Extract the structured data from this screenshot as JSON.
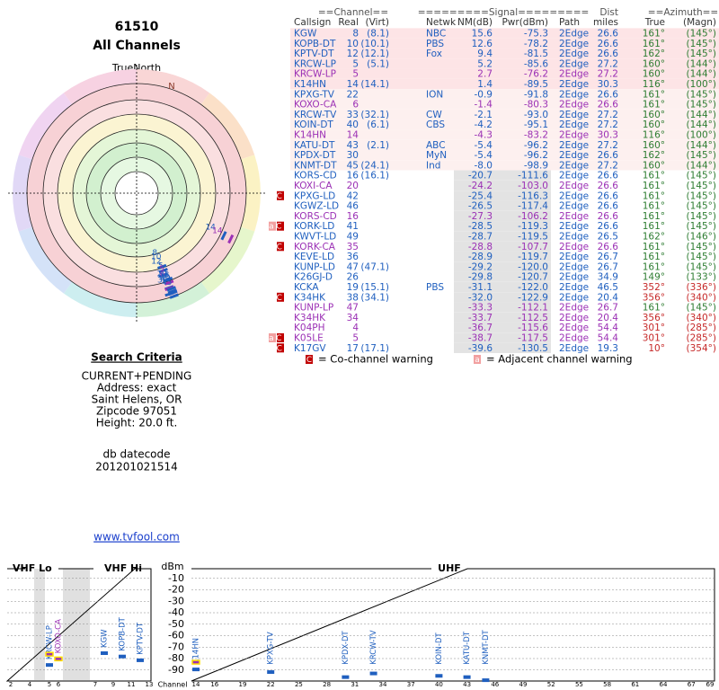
{
  "header": {
    "zip": "61510",
    "title": "All Channels"
  },
  "polar": {
    "north_label": "TrueNorth",
    "n": "N"
  },
  "criteria": {
    "heading": "Search Criteria",
    "lines": [
      "CURRENT+PENDING",
      "Address: exact",
      "Saint Helens, OR",
      "Zipcode 97051",
      "Height: 20.0 ft."
    ]
  },
  "datecode": {
    "label": "db datecode",
    "value": "201201021514"
  },
  "link": "www.tvfool.com",
  "table": {
    "group_headers": [
      "==Channel==",
      "=========Signal=========",
      "Dist",
      "==Azimuth=="
    ],
    "columns": [
      "Callsign",
      "Real",
      "(Virt)",
      "Netwk",
      "NM(dB)",
      "Pwr(dBm)",
      "Path",
      "miles",
      "True",
      "(Magn)"
    ],
    "rows": [
      {
        "callsign": "KGW",
        "real": "8",
        "virt": "(8.1)",
        "netwk": "NBC",
        "nm": "15.6",
        "pwr": "-75.3",
        "path": "2Edge",
        "dist": "26.6",
        "true": "161°",
        "magn": "(145°)",
        "color": "#1f5fbf",
        "az_color": "#2e7d32"
      },
      {
        "callsign": "KOPB-DT",
        "real": "10",
        "virt": "(10.1)",
        "netwk": "PBS",
        "nm": "12.6",
        "pwr": "-78.2",
        "path": "2Edge",
        "dist": "26.6",
        "true": "161°",
        "magn": "(145°)",
        "color": "#1f5fbf",
        "az_color": "#2e7d32"
      },
      {
        "callsign": "KPTV-DT",
        "real": "12",
        "virt": "(12.1)",
        "netwk": "Fox",
        "nm": "9.4",
        "pwr": "-81.5",
        "path": "2Edge",
        "dist": "26.6",
        "true": "162°",
        "magn": "(145°)",
        "color": "#1f5fbf",
        "az_color": "#2e7d32"
      },
      {
        "callsign": "KRCW-LP",
        "real": "5",
        "virt": "(5.1)",
        "nm": "5.2",
        "pwr": "-85.6",
        "path": "2Edge",
        "dist": "27.2",
        "true": "160°",
        "magn": "(144°)",
        "color": "#1f5fbf",
        "az_color": "#2e7d32"
      },
      {
        "callsign": "KRCW-LP",
        "real": "5",
        "nm": "2.7",
        "pwr": "-76.2",
        "path": "2Edge",
        "dist": "27.2",
        "true": "160°",
        "magn": "(144°)",
        "color": "#9b30b5",
        "az_color": "#2e7d32"
      },
      {
        "callsign": "K14HN",
        "real": "14",
        "virt": "(14.1)",
        "nm": "1.4",
        "pwr": "-89.5",
        "path": "2Edge",
        "dist": "30.3",
        "true": "116°",
        "magn": "(100°)",
        "color": "#1f5fbf",
        "az_color": "#2e7d32"
      },
      {
        "callsign": "KPXG-TV",
        "real": "22",
        "netwk": "ION",
        "nm": "-0.9",
        "pwr": "-91.8",
        "path": "2Edge",
        "dist": "26.6",
        "true": "161°",
        "magn": "(145°)",
        "color": "#1f5fbf",
        "az_color": "#2e7d32"
      },
      {
        "callsign": "KOXO-CA",
        "real": "6",
        "nm": "-1.4",
        "pwr": "-80.3",
        "path": "2Edge",
        "dist": "26.6",
        "true": "161°",
        "magn": "(145°)",
        "color": "#9b30b5",
        "az_color": "#2e7d32"
      },
      {
        "callsign": "KRCW-TV",
        "real": "33",
        "virt": "(32.1)",
        "netwk": "CW",
        "nm": "-2.1",
        "pwr": "-93.0",
        "path": "2Edge",
        "dist": "27.2",
        "true": "160°",
        "magn": "(144°)",
        "color": "#1f5fbf",
        "az_color": "#2e7d32"
      },
      {
        "callsign": "KOIN-DT",
        "real": "40",
        "virt": "(6.1)",
        "netwk": "CBS",
        "nm": "-4.2",
        "pwr": "-95.1",
        "path": "2Edge",
        "dist": "27.2",
        "true": "160°",
        "magn": "(144°)",
        "color": "#1f5fbf",
        "az_color": "#2e7d32"
      },
      {
        "callsign": "K14HN",
        "real": "14",
        "nm": "-4.3",
        "pwr": "-83.2",
        "path": "2Edge",
        "dist": "30.3",
        "true": "116°",
        "magn": "(100°)",
        "color": "#9b30b5",
        "az_color": "#2e7d32"
      },
      {
        "callsign": "KATU-DT",
        "real": "43",
        "virt": "(2.1)",
        "netwk": "ABC",
        "nm": "-5.4",
        "pwr": "-96.2",
        "path": "2Edge",
        "dist": "27.2",
        "true": "160°",
        "magn": "(144°)",
        "color": "#1f5fbf",
        "az_color": "#2e7d32"
      },
      {
        "callsign": "KPDX-DT",
        "real": "30",
        "netwk": "MyN",
        "nm": "-5.4",
        "pwr": "-96.2",
        "path": "2Edge",
        "dist": "26.6",
        "true": "162°",
        "magn": "(145°)",
        "color": "#1f5fbf",
        "az_color": "#2e7d32"
      },
      {
        "callsign": "KNMT-DT",
        "real": "45",
        "virt": "(24.1)",
        "netwk": "Ind",
        "nm": "-8.0",
        "pwr": "-98.9",
        "path": "2Edge",
        "dist": "27.2",
        "true": "160°",
        "magn": "(144°)",
        "color": "#1f5fbf",
        "az_color": "#2e7d32"
      },
      {
        "callsign": "KORS-CD",
        "real": "16",
        "virt": "(16.1)",
        "nm": "-20.7",
        "pwr": "-111.6",
        "path": "2Edge",
        "dist": "26.6",
        "true": "161°",
        "magn": "(145°)",
        "color": "#1f5fbf",
        "az_color": "#2e7d32"
      },
      {
        "callsign": "KOXI-CA",
        "real": "20",
        "nm": "-24.2",
        "pwr": "-103.0",
        "path": "2Edge",
        "dist": "26.6",
        "true": "161°",
        "magn": "(145°)",
        "color": "#9b30b5",
        "az_color": "#2e7d32"
      },
      {
        "callsign": "KPXG-LD",
        "real": "42",
        "nm": "-25.4",
        "pwr": "-116.3",
        "path": "2Edge",
        "dist": "26.6",
        "true": "161°",
        "magn": "(145°)",
        "warn": "C",
        "color": "#1f5fbf",
        "az_color": "#2e7d32"
      },
      {
        "callsign": "KGWZ-LD",
        "real": "46",
        "nm": "-26.5",
        "pwr": "-117.4",
        "path": "2Edge",
        "dist": "26.6",
        "true": "161°",
        "magn": "(145°)",
        "color": "#1f5fbf",
        "az_color": "#2e7d32"
      },
      {
        "callsign": "KORS-CD",
        "real": "16",
        "nm": "-27.3",
        "pwr": "-106.2",
        "path": "2Edge",
        "dist": "26.6",
        "true": "161°",
        "magn": "(145°)",
        "color": "#9b30b5",
        "az_color": "#2e7d32"
      },
      {
        "callsign": "KORK-LD",
        "real": "41",
        "nm": "-28.5",
        "pwr": "-119.3",
        "path": "2Edge",
        "dist": "26.6",
        "true": "161°",
        "magn": "(145°)",
        "warn": "aC",
        "color": "#1f5fbf",
        "az_color": "#2e7d32"
      },
      {
        "callsign": "KWVT-LD",
        "real": "49",
        "nm": "-28.7",
        "pwr": "-119.5",
        "path": "2Edge",
        "dist": "26.5",
        "true": "162°",
        "magn": "(146°)",
        "color": "#1f5fbf",
        "az_color": "#2e7d32"
      },
      {
        "callsign": "KORK-CA",
        "real": "35",
        "nm": "-28.8",
        "pwr": "-107.7",
        "path": "2Edge",
        "dist": "26.6",
        "true": "161°",
        "magn": "(145°)",
        "warn": "C",
        "color": "#9b30b5",
        "az_color": "#2e7d32"
      },
      {
        "callsign": "KEVE-LD",
        "real": "36",
        "nm": "-28.9",
        "pwr": "-119.7",
        "path": "2Edge",
        "dist": "26.7",
        "true": "161°",
        "magn": "(145°)",
        "color": "#1f5fbf",
        "az_color": "#2e7d32"
      },
      {
        "callsign": "KUNP-LD",
        "real": "47",
        "virt": "(47.1)",
        "nm": "-29.2",
        "pwr": "-120.0",
        "path": "2Edge",
        "dist": "26.7",
        "true": "161°",
        "magn": "(145°)",
        "color": "#1f5fbf",
        "az_color": "#2e7d32"
      },
      {
        "callsign": "K26GJ-D",
        "real": "26",
        "nm": "-29.8",
        "pwr": "-120.7",
        "path": "2Edge",
        "dist": "34.9",
        "true": "149°",
        "magn": "(133°)",
        "color": "#1f5fbf",
        "az_color": "#2e7d32"
      },
      {
        "callsign": "KCKA",
        "real": "19",
        "virt": "(15.1)",
        "netwk": "PBS",
        "nm": "-31.1",
        "pwr": "-122.0",
        "path": "2Edge",
        "dist": "46.5",
        "true": "352°",
        "magn": "(336°)",
        "color": "#1f5fbf",
        "az_color": "#c62828"
      },
      {
        "callsign": "K34HK",
        "real": "38",
        "virt": "(34.1)",
        "nm": "-32.0",
        "pwr": "-122.9",
        "path": "2Edge",
        "dist": "20.4",
        "true": "356°",
        "magn": "(340°)",
        "warn": "C",
        "color": "#1f5fbf",
        "az_color": "#c62828"
      },
      {
        "callsign": "KUNP-LP",
        "real": "47",
        "nm": "-33.3",
        "pwr": "-112.1",
        "path": "2Edge",
        "dist": "26.7",
        "true": "161°",
        "magn": "(145°)",
        "color": "#9b30b5",
        "az_color": "#2e7d32"
      },
      {
        "callsign": "K34HK",
        "real": "34",
        "nm": "-33.7",
        "pwr": "-112.5",
        "path": "2Edge",
        "dist": "20.4",
        "true": "356°",
        "magn": "(340°)",
        "color": "#9b30b5",
        "az_color": "#c62828"
      },
      {
        "callsign": "K04PH",
        "real": "4",
        "nm": "-36.7",
        "pwr": "-115.6",
        "path": "2Edge",
        "dist": "54.4",
        "true": "301°",
        "magn": "(285°)",
        "color": "#9b30b5",
        "az_color": "#c62828"
      },
      {
        "callsign": "K05LE",
        "real": "5",
        "nm": "-38.7",
        "pwr": "-117.5",
        "path": "2Edge",
        "dist": "54.4",
        "true": "301°",
        "magn": "(285°)",
        "warn": "aC",
        "color": "#9b30b5",
        "az_color": "#c62828"
      },
      {
        "callsign": "K17GV",
        "real": "17",
        "virt": "(17.1)",
        "nm": "-39.6",
        "pwr": "-130.5",
        "path": "2Edge",
        "dist": "19.3",
        "true": "10°",
        "magn": "(354°)",
        "warn": "C",
        "color": "#1f5fbf",
        "az_color": "#c62828"
      }
    ]
  },
  "legend": [
    {
      "badge": "C",
      "text": "= Co-channel warning"
    },
    {
      "badge": "a",
      "text": "= Adjacent channel warning"
    }
  ],
  "spectrum": {
    "bands": [
      "VHF Lo",
      "VHF Hi",
      "UHF"
    ],
    "y_label": "dBm",
    "ylim": [
      -100,
      0
    ],
    "yticks": [
      -10,
      -20,
      -30,
      -40,
      -50,
      -60,
      -70,
      -80,
      -90
    ],
    "x_label": "Channel",
    "vhf_channels": [
      2,
      4,
      5,
      6,
      7,
      9,
      11,
      13
    ],
    "uhf_channels": [
      14,
      16,
      19,
      22,
      25,
      28,
      31,
      34,
      37,
      40,
      43,
      46,
      49,
      52,
      55,
      58,
      61,
      64,
      67,
      69
    ]
  }
}
